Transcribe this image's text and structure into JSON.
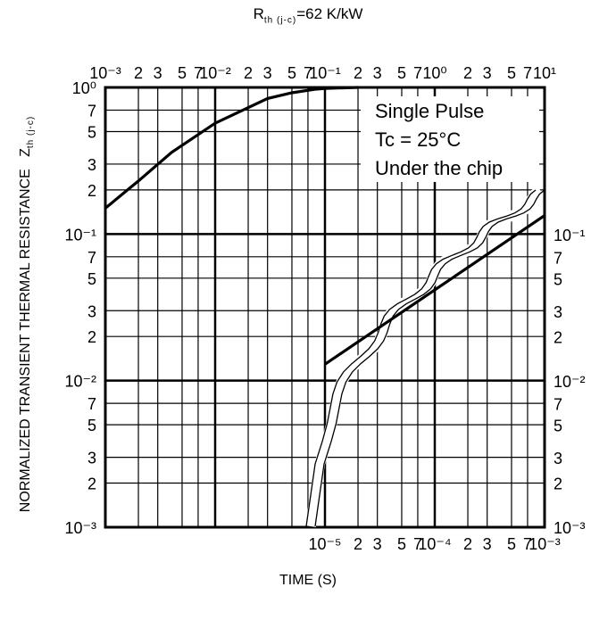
{
  "chart_data": {
    "type": "line",
    "scale": "log-log",
    "title_symbol": "R",
    "title_sub": "th (j-c)",
    "title_rest": "=62 K/kW",
    "xlabel": "TIME   (S)",
    "ylabel": "NORMALIZED TRANSIENT THERMAL RESISTANCE",
    "ylabel_symbol": "Z",
    "ylabel_sub": "th (j-c)",
    "top_axis_ticks": [
      "10⁻³",
      "2",
      "3",
      "5",
      "7",
      "10⁻²",
      "2",
      "3",
      "5",
      "7",
      "10⁻¹",
      "2",
      "3",
      "5",
      "7",
      "10⁰",
      "2",
      "3",
      "5",
      "7",
      "10¹"
    ],
    "bottom_axis_ticks": [
      "10⁻⁵",
      "2",
      "3",
      "5",
      "7",
      "10⁻⁴",
      "2",
      "3",
      "5",
      "7",
      "10⁻³"
    ],
    "y_axis_ticks": [
      "10⁰",
      "7",
      "5",
      "3",
      "2",
      "10⁻¹",
      "7",
      "5",
      "3",
      "2",
      "10⁻²",
      "7",
      "5",
      "3",
      "2",
      "10⁻³"
    ],
    "right_axis_ticks": [
      "10⁻¹",
      "7",
      "5",
      "3",
      "2",
      "10⁻²",
      "7",
      "5",
      "3",
      "2",
      "10⁻³"
    ],
    "annotations": [
      "Single Pulse",
      "Tc = 25°C",
      "Under the chip"
    ],
    "grid": true,
    "series": [
      {
        "axes": "top-left",
        "x": [
          0.001,
          0.002,
          0.004,
          0.01,
          0.03,
          0.05,
          0.08,
          0.1,
          0.2
        ],
        "y": [
          0.15,
          0.23,
          0.36,
          0.57,
          0.84,
          0.92,
          0.97,
          0.985,
          1.0
        ]
      },
      {
        "axes": "bottom-right",
        "x": [
          1e-05,
          0.001
        ],
        "y": [
          0.013,
          0.135
        ]
      }
    ]
  }
}
